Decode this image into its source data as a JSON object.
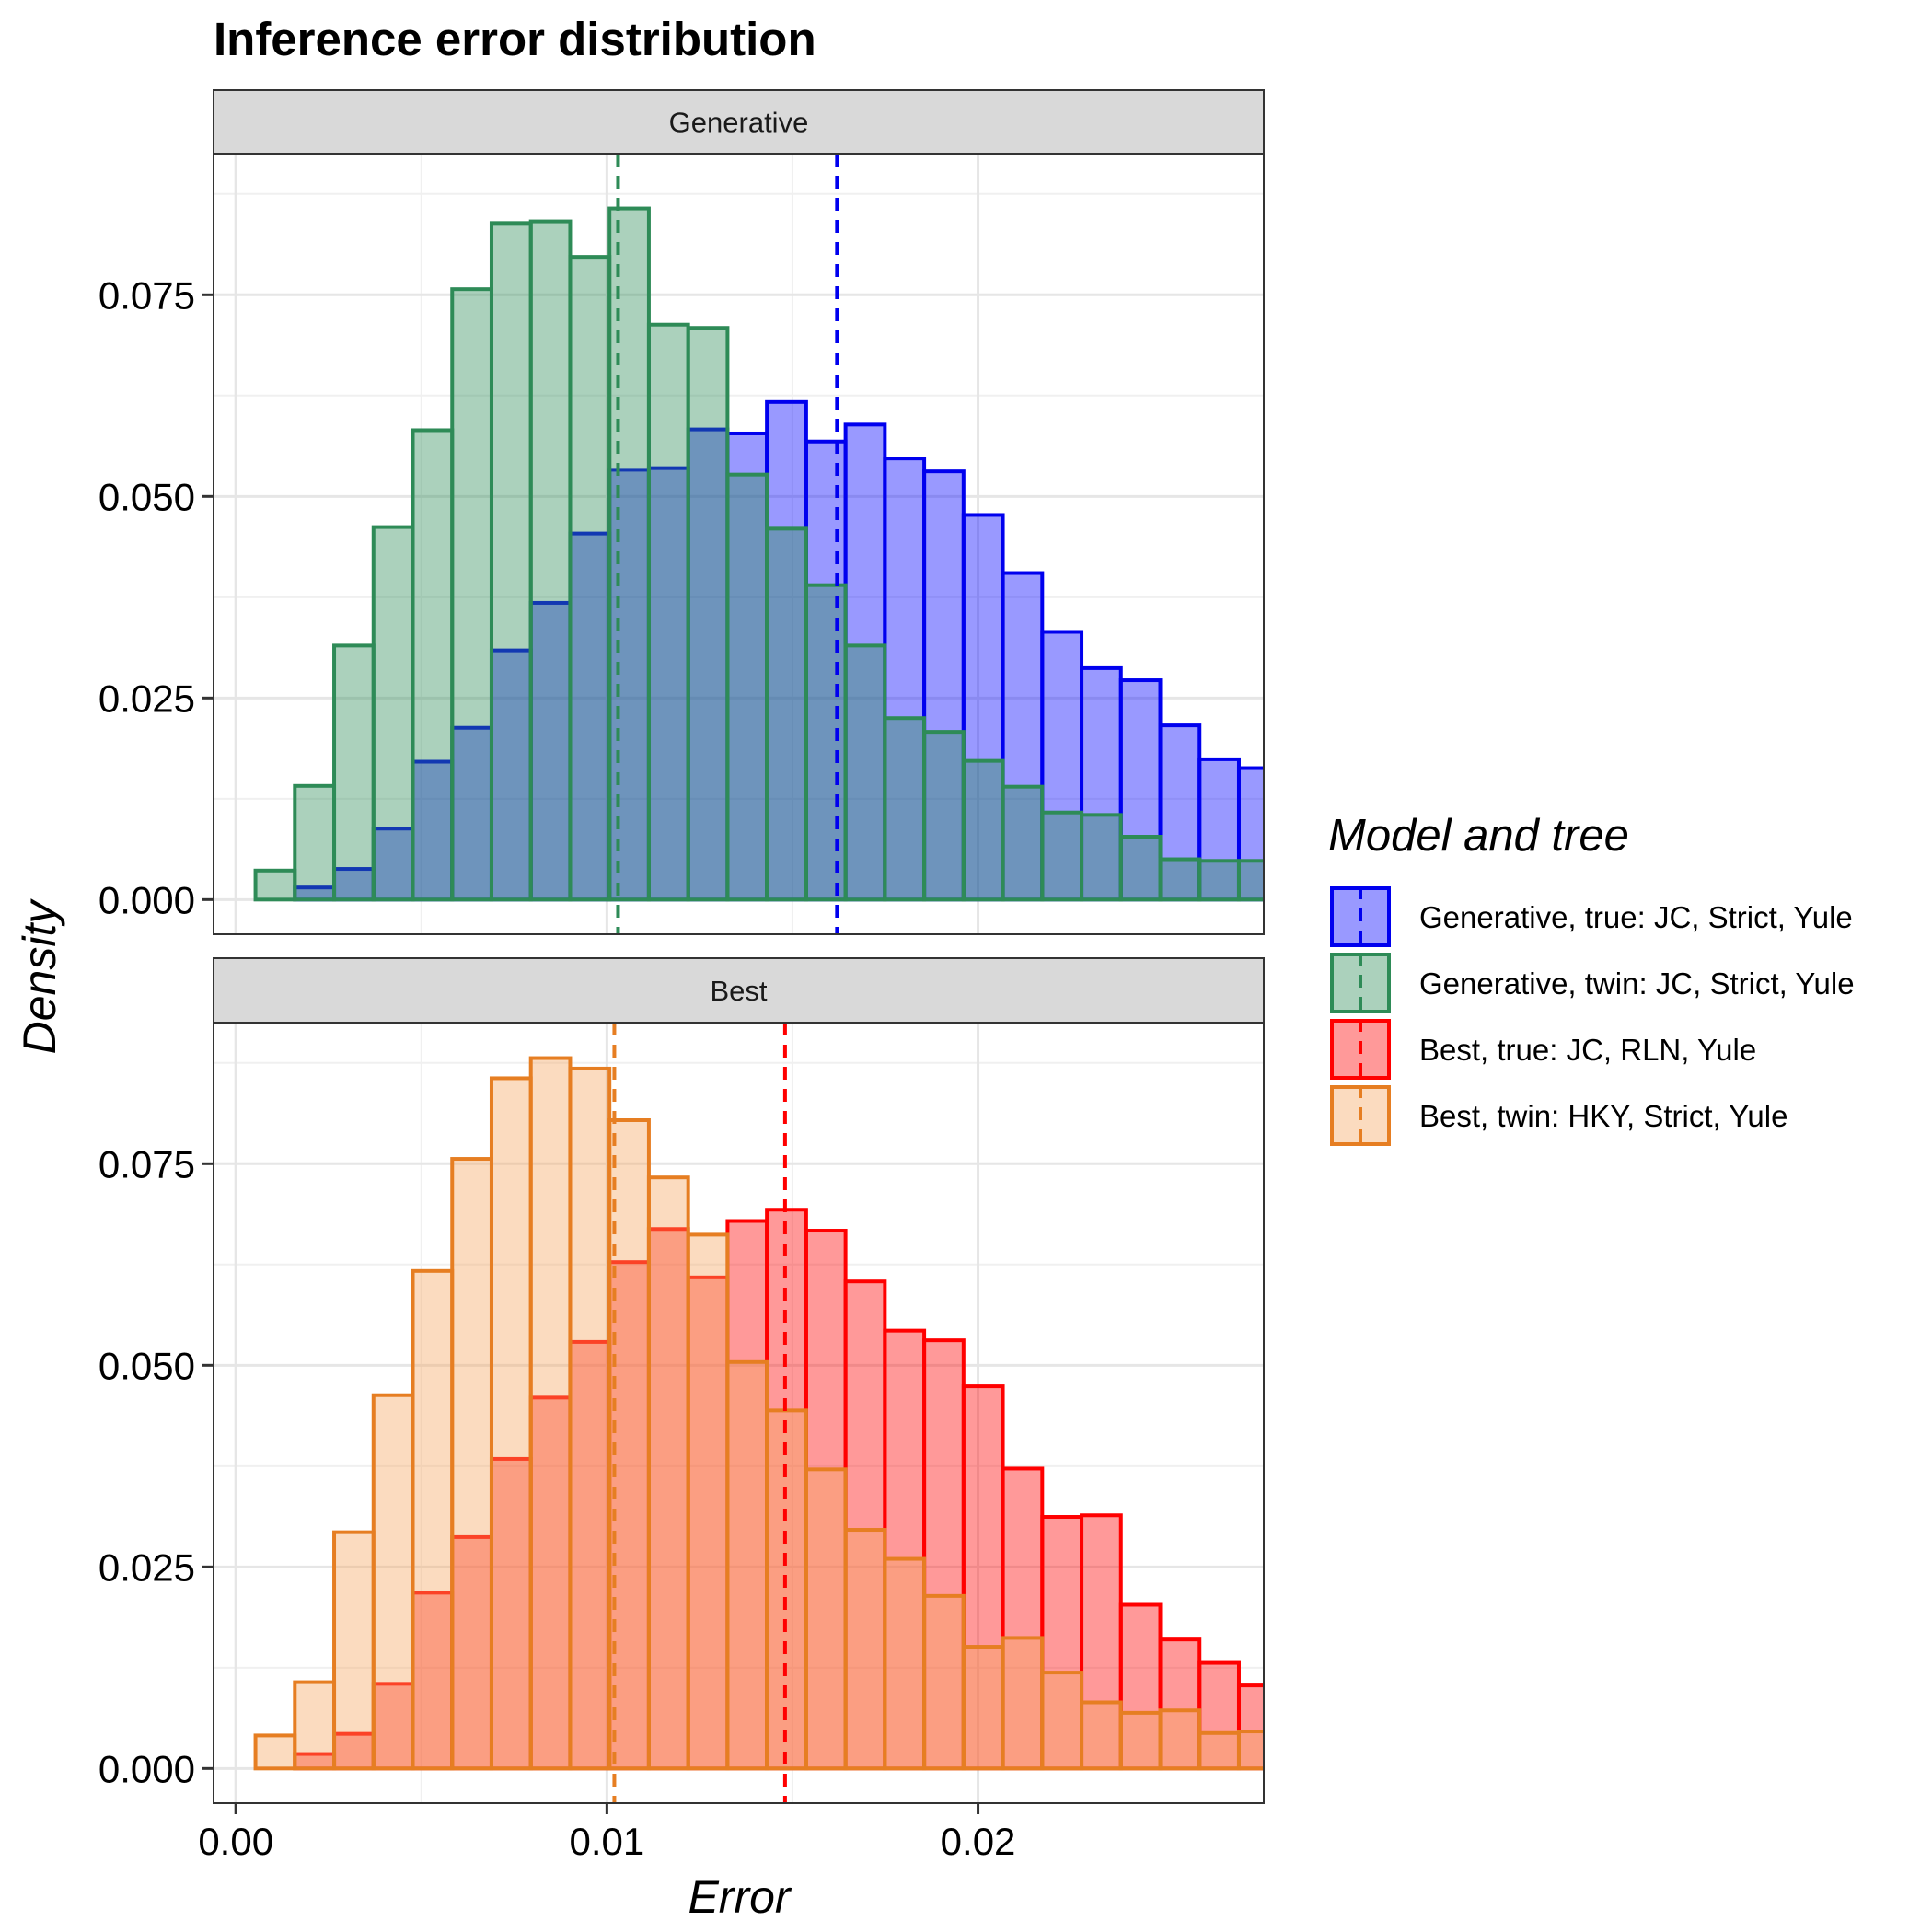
{
  "chart_data": {
    "type": "bar",
    "title": "Inference error distribution",
    "xlabel": "Error",
    "ylabel": "Density",
    "xlim": [
      -0.0006,
      0.0277
    ],
    "ylim": [
      -0.0043,
      0.0925
    ],
    "x_ticks": [
      0.0,
      0.01,
      0.02
    ],
    "x_tick_labels": [
      "0.00",
      "0.01",
      "0.02"
    ],
    "y_ticks": [
      0.0,
      0.025,
      0.05,
      0.075
    ],
    "y_tick_labels": [
      "0.000",
      "0.025",
      "0.050",
      "0.075"
    ],
    "grid": true,
    "legend_position": "right",
    "legend_title": "Model and tree",
    "bin_left_edges": [
      0.00053,
      0.00159,
      0.00265,
      0.00371,
      0.00477,
      0.00583,
      0.00689,
      0.00795,
      0.00901,
      0.01007,
      0.01113,
      0.01219,
      0.01325,
      0.01431,
      0.01537,
      0.01643,
      0.01749,
      0.01855,
      0.01961,
      0.02067,
      0.02173,
      0.02279,
      0.02385,
      0.02491,
      0.02597,
      0.02703
    ],
    "bin_width": 0.00106,
    "panels": [
      {
        "name": "Generative",
        "series": [
          {
            "name": "Generative, true: JC, Strict, Yule",
            "fill": "#0000ff",
            "stroke": "#0000ee",
            "mean": 0.0162,
            "values": [
              0.0,
              0.0015,
              0.0038,
              0.0088,
              0.0171,
              0.0213,
              0.0309,
              0.0368,
              0.0454,
              0.0533,
              0.0535,
              0.0583,
              0.0578,
              0.0617,
              0.0568,
              0.0589,
              0.0547,
              0.0531,
              0.0477,
              0.0405,
              0.0332,
              0.0287,
              0.0272,
              0.0216,
              0.0174,
              0.0163
            ]
          },
          {
            "name": "Generative, twin: JC, Strict, Yule",
            "fill": "#2e8b57",
            "stroke": "#2e8b57",
            "mean": 0.0103,
            "values": [
              0.0036,
              0.0141,
              0.0315,
              0.0462,
              0.0582,
              0.0757,
              0.0839,
              0.0841,
              0.0797,
              0.0857,
              0.0713,
              0.0709,
              0.0527,
              0.046,
              0.039,
              0.0315,
              0.0225,
              0.0208,
              0.0172,
              0.014,
              0.0108,
              0.0105,
              0.0078,
              0.005,
              0.0048,
              0.0048
            ]
          }
        ]
      },
      {
        "name": "Best",
        "series": [
          {
            "name": "Best, true: JC, RLN, Yule",
            "fill": "#ff0000",
            "stroke": "#ff0000",
            "mean": 0.0148,
            "values": [
              0.0,
              0.0018,
              0.0043,
              0.0105,
              0.0218,
              0.0287,
              0.0384,
              0.046,
              0.0529,
              0.0628,
              0.0669,
              0.0609,
              0.0679,
              0.0693,
              0.0667,
              0.0604,
              0.0543,
              0.0531,
              0.0474,
              0.0372,
              0.0312,
              0.0314,
              0.0203,
              0.016,
              0.0131,
              0.0103
            ]
          },
          {
            "name": "Best, twin: HKY, Strict, Yule",
            "fill": "#f4a460",
            "stroke": "#e67e22",
            "mean": 0.0102,
            "values": [
              0.0041,
              0.0107,
              0.0293,
              0.0463,
              0.0617,
              0.0756,
              0.0856,
              0.0881,
              0.0868,
              0.0804,
              0.0733,
              0.0662,
              0.0504,
              0.0444,
              0.0371,
              0.0296,
              0.026,
              0.0214,
              0.0151,
              0.0162,
              0.0119,
              0.0082,
              0.0069,
              0.0072,
              0.0044,
              0.0046
            ]
          }
        ]
      }
    ]
  }
}
